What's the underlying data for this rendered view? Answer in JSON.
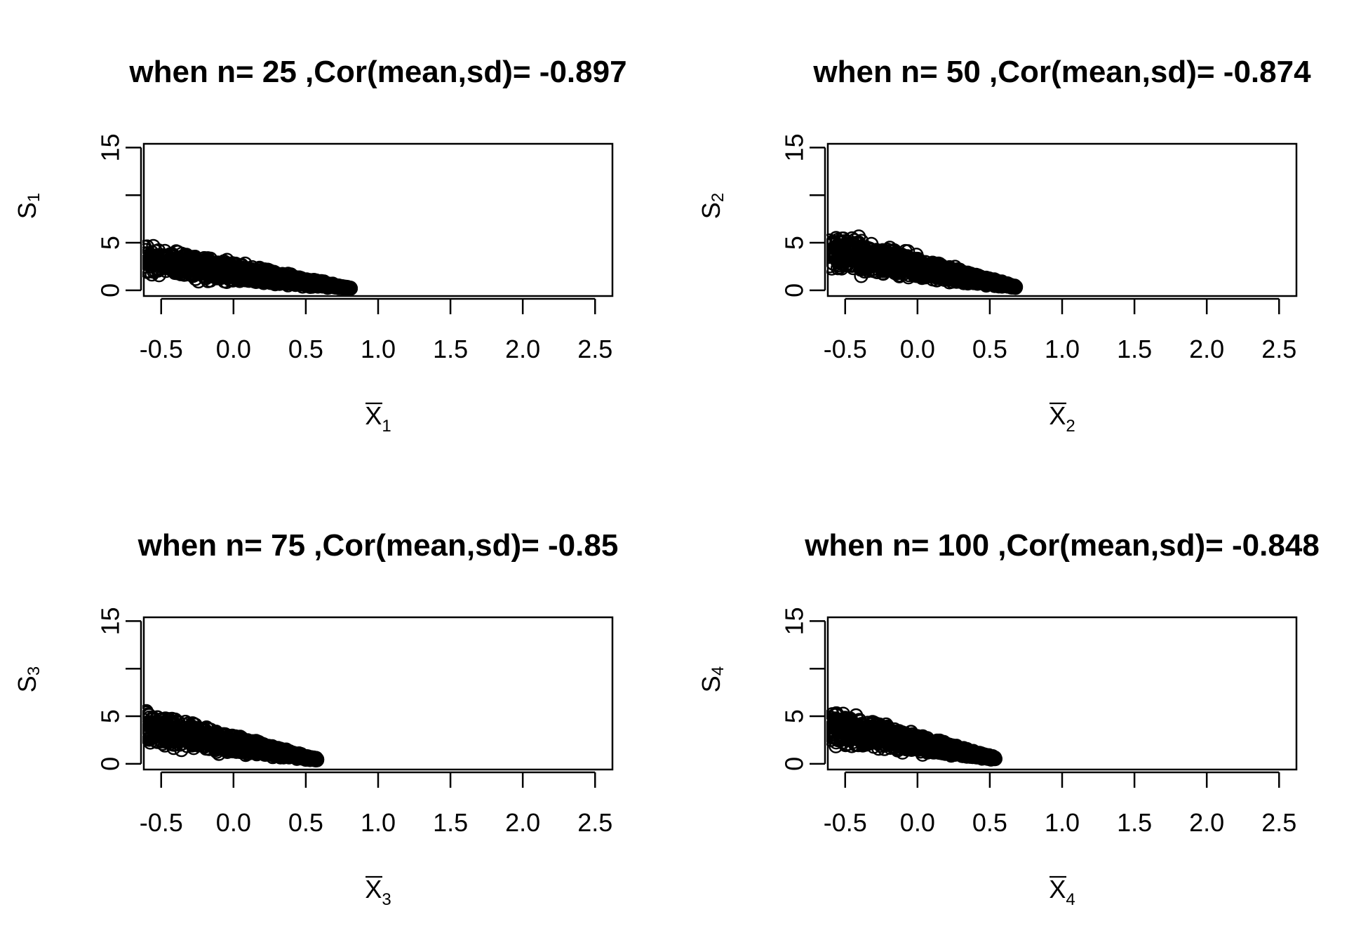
{
  "chart_data": [
    {
      "type": "scatter",
      "title": "when n= 25  ,Cor(mean,sd)= -0.897",
      "xlabel": "X",
      "xlabel_subscript": "1",
      "xlabel_overline": true,
      "ylabel": "S",
      "ylabel_subscript": "1",
      "xlim": [
        -0.62,
        2.62
      ],
      "ylim": [
        -0.6,
        15.4
      ],
      "xticks": [
        -0.5,
        0.0,
        0.5,
        1.0,
        1.5,
        2.0,
        2.5
      ],
      "xtick_labels": [
        "-0.5",
        "0.0",
        "0.5",
        "1.0",
        "1.5",
        "2.0",
        "2.5"
      ],
      "yticks": [
        0,
        5,
        10,
        15
      ],
      "ytick_labels": [
        "0",
        "5",
        "",
        "15"
      ],
      "grid": false,
      "point_cloud": {
        "x_range": [
          -0.62,
          0.81
        ],
        "y_at_xmin": [
          1.0,
          5.5
        ],
        "y_at_xmax": [
          0.1,
          0.3
        ],
        "n_points": 1200,
        "marker": "open-circle"
      }
    },
    {
      "type": "scatter",
      "title": "when n= 50  ,Cor(mean,sd)= -0.874",
      "xlabel": "X",
      "xlabel_subscript": "2",
      "xlabel_overline": true,
      "ylabel": "S",
      "ylabel_subscript": "2",
      "xlim": [
        -0.62,
        2.62
      ],
      "ylim": [
        -0.6,
        15.4
      ],
      "xticks": [
        -0.5,
        0.0,
        0.5,
        1.0,
        1.5,
        2.0,
        2.5
      ],
      "xtick_labels": [
        "-0.5",
        "0.0",
        "0.5",
        "1.0",
        "1.5",
        "2.0",
        "2.5"
      ],
      "yticks": [
        0,
        5,
        10,
        15
      ],
      "ytick_labels": [
        "0",
        "5",
        "",
        "15"
      ],
      "grid": false,
      "point_cloud": {
        "x_range": [
          -0.62,
          0.68
        ],
        "y_at_xmin": [
          1.5,
          7.0
        ],
        "y_at_xmax": [
          0.2,
          0.5
        ],
        "n_points": 1200,
        "marker": "open-circle"
      }
    },
    {
      "type": "scatter",
      "title": "when n= 75  ,Cor(mean,sd)= -0.85",
      "xlabel": "X",
      "xlabel_subscript": "3",
      "xlabel_overline": true,
      "ylabel": "S",
      "ylabel_subscript": "3",
      "xlim": [
        -0.62,
        2.62
      ],
      "ylim": [
        -0.6,
        15.4
      ],
      "xticks": [
        -0.5,
        0.0,
        0.5,
        1.0,
        1.5,
        2.0,
        2.5
      ],
      "xtick_labels": [
        "-0.5",
        "0.0",
        "0.5",
        "1.0",
        "1.5",
        "2.0",
        "2.5"
      ],
      "yticks": [
        0,
        5,
        10,
        15
      ],
      "ytick_labels": [
        "0",
        "5",
        "",
        "15"
      ],
      "grid": false,
      "point_cloud": {
        "x_range": [
          -0.62,
          0.58
        ],
        "y_at_xmin": [
          1.5,
          6.2
        ],
        "y_at_xmax": [
          0.3,
          0.6
        ],
        "n_points": 1200,
        "marker": "open-circle"
      }
    },
    {
      "type": "scatter",
      "title": "when n= 100  ,Cor(mean,sd)= -0.848",
      "xlabel": "X",
      "xlabel_subscript": "4",
      "xlabel_overline": true,
      "ylabel": "S",
      "ylabel_subscript": "4",
      "xlim": [
        -0.62,
        2.62
      ],
      "ylim": [
        -0.6,
        15.4
      ],
      "xticks": [
        -0.5,
        0.0,
        0.5,
        1.0,
        1.5,
        2.0,
        2.5
      ],
      "xtick_labels": [
        "-0.5",
        "0.0",
        "0.5",
        "1.0",
        "1.5",
        "2.0",
        "2.5"
      ],
      "yticks": [
        0,
        5,
        10,
        15
      ],
      "ytick_labels": [
        "0",
        "5",
        "",
        "15"
      ],
      "grid": false,
      "point_cloud": {
        "x_range": [
          -0.62,
          0.54
        ],
        "y_at_xmin": [
          1.6,
          6.3
        ],
        "y_at_xmax": [
          0.4,
          0.7
        ],
        "n_points": 1200,
        "marker": "open-circle"
      }
    }
  ]
}
